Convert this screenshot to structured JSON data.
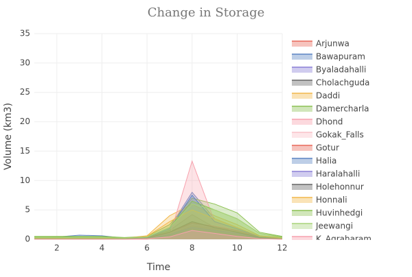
{
  "chart_data": {
    "type": "area",
    "title": "Change in Storage",
    "x_label": "Time",
    "y_label": "Volume (km3)",
    "x": [
      1,
      2,
      3,
      4,
      5,
      6,
      7,
      8,
      9,
      10,
      11,
      12
    ],
    "xlim": [
      1,
      12
    ],
    "xticks": [
      2,
      4,
      6,
      8,
      10,
      12
    ],
    "ylim": [
      0,
      35
    ],
    "yticks": [
      0,
      5,
      10,
      15,
      20,
      25,
      30,
      35
    ],
    "grid": true,
    "legend": "right",
    "series": [
      {
        "name": "Arjunwa",
        "color": "#e8685a",
        "values": [
          0.2,
          0.2,
          0.2,
          0.2,
          0.1,
          0.3,
          1.5,
          2.5,
          2,
          1.5,
          0.5,
          0.2
        ]
      },
      {
        "name": "Bawapuram",
        "color": "#5b84c4",
        "values": [
          0.3,
          0.4,
          0.7,
          0.6,
          0.2,
          0.4,
          2,
          8,
          3.5,
          2,
          0.5,
          0.3
        ]
      },
      {
        "name": "Byaladahalli",
        "color": "#8a7fd6",
        "values": [
          0.1,
          0.1,
          0.1,
          0.1,
          0.1,
          0.2,
          1,
          3,
          2,
          1.2,
          0.3,
          0.1
        ]
      },
      {
        "name": "Cholachguda",
        "color": "#666666",
        "values": [
          0.1,
          0.1,
          0.1,
          0.1,
          0.1,
          0.3,
          1.5,
          4.2,
          2,
          1.5,
          0.3,
          0.1
        ]
      },
      {
        "name": "Daddi",
        "color": "#f2b84b",
        "values": [
          0.2,
          0.2,
          0.2,
          0.2,
          0.2,
          0.6,
          4,
          6,
          4,
          2.5,
          0.6,
          0.3
        ]
      },
      {
        "name": "Damercharla",
        "color": "#8cc152",
        "values": [
          0.5,
          0.5,
          0.5,
          0.5,
          0.3,
          0.5,
          2.5,
          7,
          6,
          4.5,
          1.2,
          0.5
        ]
      },
      {
        "name": "Dhond",
        "color": "#f7a1ad",
        "values": [
          0,
          0,
          0,
          0,
          0,
          0,
          0.5,
          13.3,
          3,
          1,
          0.2,
          0
        ]
      },
      {
        "name": "Gokak_Falls",
        "color": "#f9c0c8",
        "values": [
          0.1,
          0.1,
          0.1,
          0.1,
          0.1,
          0.2,
          1,
          2.5,
          2,
          1,
          0.3,
          0.1
        ]
      },
      {
        "name": "Gotur",
        "color": "#e8685a",
        "values": [
          0.1,
          0.1,
          0.1,
          0.1,
          0.1,
          0.3,
          1.2,
          2.8,
          2.2,
          1.5,
          0.4,
          0.1
        ]
      },
      {
        "name": "Halia",
        "color": "#5b84c4",
        "values": [
          0.2,
          0.2,
          0.3,
          0.3,
          0.1,
          0.3,
          1.8,
          7.5,
          3,
          1.8,
          0.4,
          0.2
        ]
      },
      {
        "name": "Haralahalli",
        "color": "#8a7fd6",
        "values": [
          0.1,
          0.1,
          0.1,
          0.1,
          0.1,
          0.1,
          0.8,
          2,
          1.5,
          1,
          0.2,
          0.1
        ]
      },
      {
        "name": "Holehonnur",
        "color": "#666666",
        "values": [
          0.1,
          0.1,
          0.1,
          0.1,
          0.1,
          0.2,
          1.2,
          3,
          2,
          1.2,
          0.3,
          0.1
        ]
      },
      {
        "name": "Honnali",
        "color": "#f2b84b",
        "values": [
          0.2,
          0.2,
          0.2,
          0.2,
          0.2,
          0.5,
          3,
          5,
          3.5,
          2,
          0.5,
          0.2
        ]
      },
      {
        "name": "Huvinhedgi",
        "color": "#8cc152",
        "values": [
          0.4,
          0.4,
          0.4,
          0.4,
          0.2,
          0.4,
          2,
          6.5,
          5,
          3.5,
          1,
          0.4
        ]
      },
      {
        "name": "Jeewangi",
        "color": "#a8d37a",
        "values": [
          0.3,
          0.3,
          0.3,
          0.3,
          0.2,
          0.4,
          2,
          6,
          5,
          3.5,
          1,
          0.3
        ]
      },
      {
        "name": "K_Agraharam",
        "color": "#f7a1ad",
        "values": [
          0,
          0,
          0,
          0,
          0,
          0.1,
          0.4,
          1.5,
          1,
          0.5,
          0.1,
          0
        ]
      }
    ]
  }
}
